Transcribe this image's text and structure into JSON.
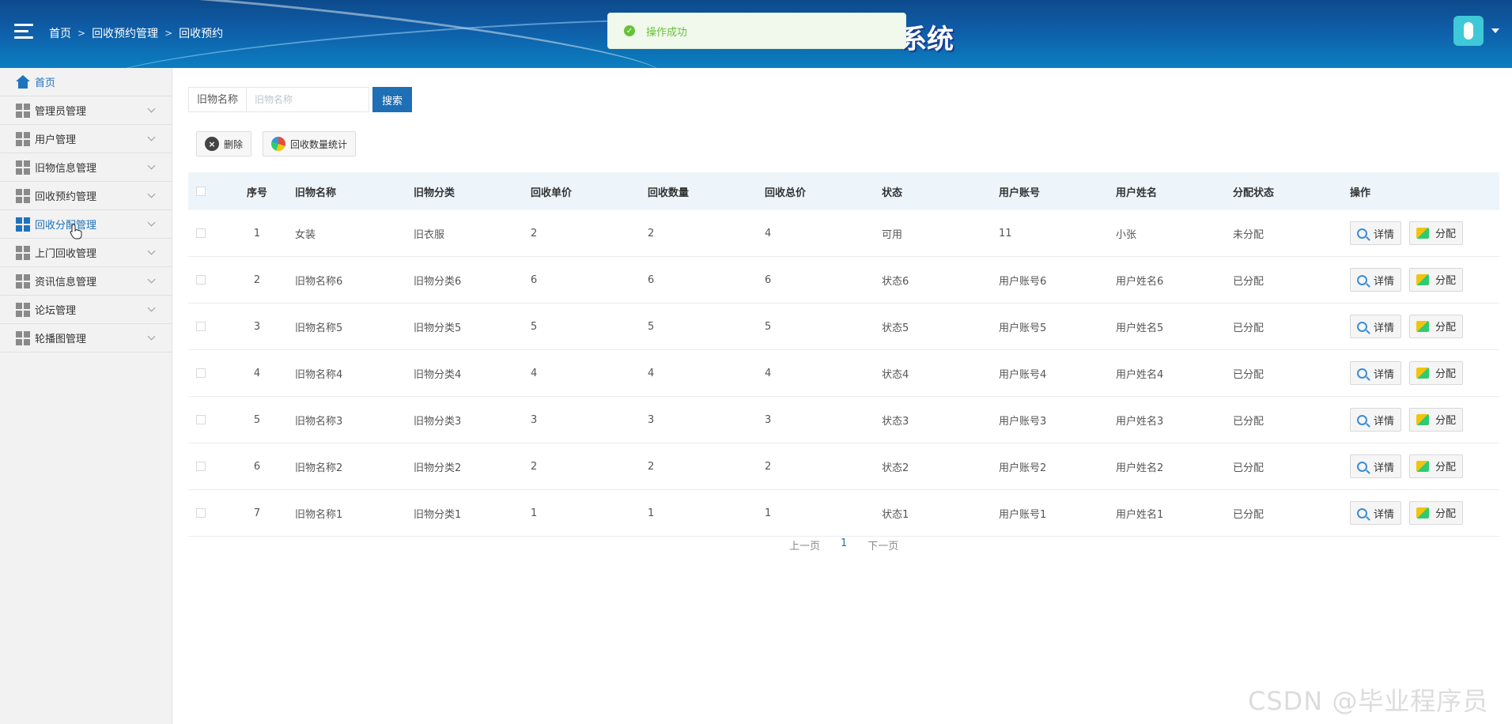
{
  "header": {
    "breadcrumb": [
      "首页",
      "回收预约管理",
      "回收预约"
    ],
    "title_fragment": "系统"
  },
  "toast": {
    "message": "操作成功"
  },
  "sidebar": {
    "items": [
      {
        "label": "首页",
        "icon": "home-icon"
      },
      {
        "label": "管理员管理",
        "icon": "grid-icon"
      },
      {
        "label": "用户管理",
        "icon": "grid-icon"
      },
      {
        "label": "旧物信息管理",
        "icon": "grid-icon"
      },
      {
        "label": "回收预约管理",
        "icon": "grid-icon"
      },
      {
        "label": "回收分配管理",
        "icon": "grid-icon"
      },
      {
        "label": "上门回收管理",
        "icon": "grid-icon"
      },
      {
        "label": "资讯信息管理",
        "icon": "grid-icon"
      },
      {
        "label": "论坛管理",
        "icon": "grid-icon"
      },
      {
        "label": "轮播图管理",
        "icon": "grid-icon"
      }
    ]
  },
  "search": {
    "label": "旧物名称",
    "placeholder": "旧物名称",
    "button": "搜索"
  },
  "toolbar": {
    "delete": "删除",
    "stats": "回收数量统计"
  },
  "table": {
    "columns": [
      "序号",
      "旧物名称",
      "旧物分类",
      "回收单价",
      "回收数量",
      "回收总价",
      "状态",
      "用户账号",
      "用户姓名",
      "分配状态",
      "操作"
    ],
    "rows": [
      [
        "1",
        "女装",
        "旧衣服",
        "2",
        "2",
        "4",
        "可用",
        "11",
        "小张",
        "未分配"
      ],
      [
        "2",
        "旧物名称6",
        "旧物分类6",
        "6",
        "6",
        "6",
        "状态6",
        "用户账号6",
        "用户姓名6",
        "已分配"
      ],
      [
        "3",
        "旧物名称5",
        "旧物分类5",
        "5",
        "5",
        "5",
        "状态5",
        "用户账号5",
        "用户姓名5",
        "已分配"
      ],
      [
        "4",
        "旧物名称4",
        "旧物分类4",
        "4",
        "4",
        "4",
        "状态4",
        "用户账号4",
        "用户姓名4",
        "已分配"
      ],
      [
        "5",
        "旧物名称3",
        "旧物分类3",
        "3",
        "3",
        "3",
        "状态3",
        "用户账号3",
        "用户姓名3",
        "已分配"
      ],
      [
        "6",
        "旧物名称2",
        "旧物分类2",
        "2",
        "2",
        "2",
        "状态2",
        "用户账号2",
        "用户姓名2",
        "已分配"
      ],
      [
        "7",
        "旧物名称1",
        "旧物分类1",
        "1",
        "1",
        "1",
        "状态1",
        "用户账号1",
        "用户姓名1",
        "已分配"
      ]
    ],
    "actions": {
      "detail": "详情",
      "assign": "分配"
    }
  },
  "pager": {
    "prev": "上一页",
    "current": "1",
    "next": "下一页"
  },
  "watermark": "CSDN @毕业程序员",
  "colors": {
    "accent": "#1e6fb5",
    "header": "#0f5ea8",
    "toast_bg": "#f0f9eb",
    "toast_text": "#67c23a"
  }
}
